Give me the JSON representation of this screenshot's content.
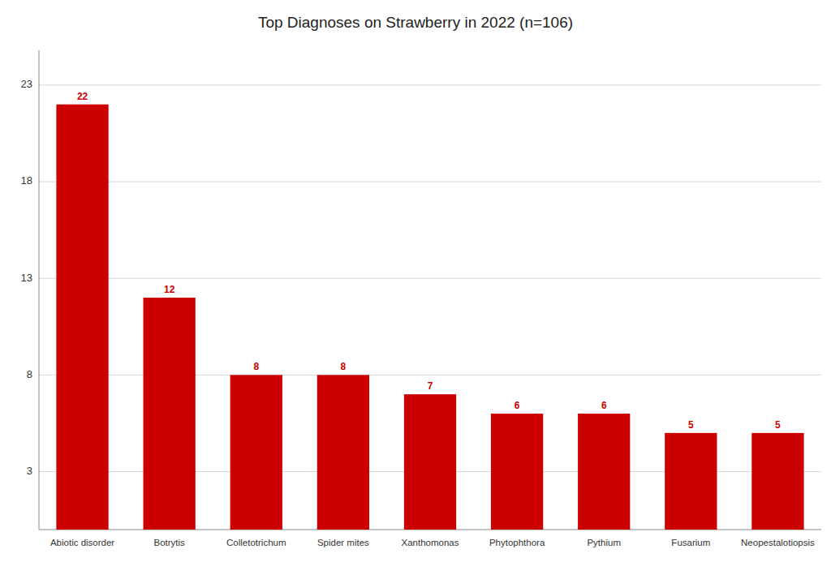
{
  "chart_data": {
    "type": "bar",
    "title": "Top Diagnoses on Strawberry in 2022 (n=106)",
    "categories": [
      "Abiotic disorder",
      "Botrytis",
      "Colletotrichum",
      "Spider mites",
      "Xanthomonas",
      "Phytophthora",
      "Pythium",
      "Fusarium",
      "Neopestalotiopsis"
    ],
    "values": [
      22,
      12,
      8,
      8,
      7,
      6,
      6,
      5,
      5
    ],
    "color": "#cc0000",
    "ylim": [
      0,
      24.8
    ],
    "yticks": [
      3,
      8,
      13,
      18,
      23
    ],
    "grid": true,
    "data_labels": true
  }
}
